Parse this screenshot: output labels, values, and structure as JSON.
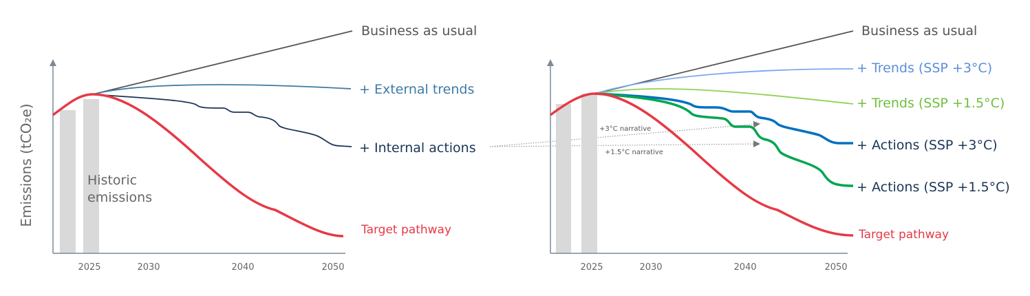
{
  "y_axis_label": "Emissions (tCO₂e)",
  "x_ticks": [
    "2025",
    "2030",
    "2040",
    "2050"
  ],
  "colors": {
    "business_as_usual": "#555555",
    "external_trends": "#3f7aa3",
    "internal_actions": "#1b3556",
    "target": "#e63946",
    "trends_3c": "#7aa9f0",
    "trends_15c": "#8fd14f",
    "actions_3c": "#0070c0",
    "actions_15c": "#00a650",
    "historic_bars": "#d9d9d9"
  },
  "left_panel": {
    "historic_label_line1": "Historic",
    "historic_label_line2": "emissions",
    "labels": {
      "business_as_usual": "Business as usual",
      "external_trends": "+ External trends",
      "internal_actions": "+ Internal actions",
      "target": "Target pathway"
    }
  },
  "right_panel": {
    "narratives": {
      "three": "+3°C narrative",
      "one_five": "+1.5°C narrative"
    },
    "labels": {
      "business_as_usual": "Business as usual",
      "trends_3c": "+ Trends (SSP +3°C)",
      "trends_15c": "+ Trends (SSP +1.5°C)",
      "actions_3c": "+ Actions (SSP +3°C)",
      "actions_15c": "+ Actions (SSP +1.5°C)",
      "target": "Target pathway"
    }
  }
}
